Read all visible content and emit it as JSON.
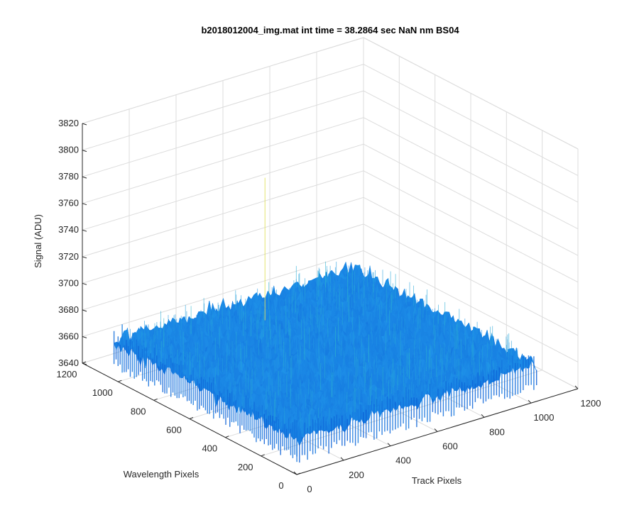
{
  "chart_data": {
    "type": "surface",
    "title": "b2018012004_img.mat int time = 38.2864 sec  NaN nm BS04",
    "xlabel": "Track Pixels",
    "ylabel": "Wavelength Pixels",
    "zlabel": "Signal (ADU)",
    "xlim": [
      0,
      1200
    ],
    "ylim": [
      0,
      1200
    ],
    "zlim": [
      3640,
      3820
    ],
    "x_ticks": [
      "0",
      "200",
      "400",
      "600",
      "800",
      "1000",
      "1200"
    ],
    "y_ticks": [
      "0",
      "200",
      "400",
      "600",
      "800",
      "1000",
      "1200"
    ],
    "z_ticks": [
      "3640",
      "3660",
      "3680",
      "3700",
      "3720",
      "3740",
      "3760",
      "3780",
      "3800",
      "3820"
    ],
    "data_extent": {
      "x": [
        1,
        1024
      ],
      "y": [
        1,
        1024
      ]
    },
    "signal_mean": 3668,
    "signal_noise_range": [
      3645,
      3700
    ],
    "outlier_peak": 3775,
    "grid": true,
    "colormap": "parula",
    "colors": {
      "low": "#0b5fd6",
      "mid": "#1e90e8",
      "high": "#30c0c8",
      "peak": "#e0e060"
    }
  }
}
